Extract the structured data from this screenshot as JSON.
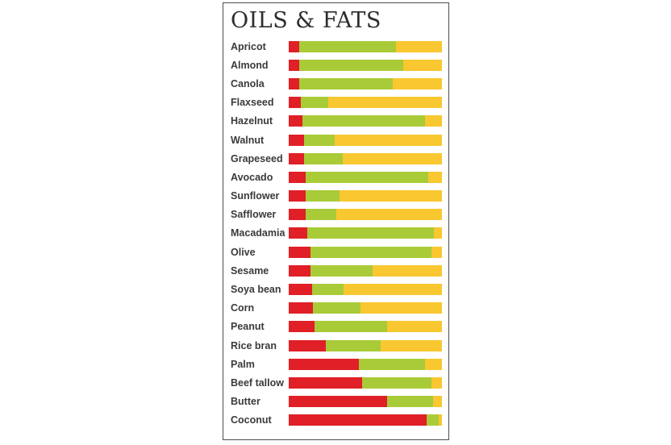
{
  "title": "OILS & FATS",
  "colors": {
    "red": "#e01f27",
    "green": "#a9cb38",
    "yellow": "#f9c72f",
    "panel_border": "#4d4d4d",
    "title_text": "#2d2d2d",
    "label_text": "#3a3a3a"
  },
  "chart_data": {
    "type": "bar",
    "subtype": "horizontal-stacked-100-percent",
    "title": "OILS & FATS",
    "xlabel": "",
    "ylabel": "",
    "xlim": [
      0,
      100
    ],
    "grid": false,
    "legend": "none",
    "categories": [
      "Apricot",
      "Almond",
      "Canola",
      "Flaxseed",
      "Hazelnut",
      "Walnut",
      "Grapeseed",
      "Avocado",
      "Sunflower",
      "Safflower",
      "Macadamia",
      "Olive",
      "Sesame",
      "Soya bean",
      "Corn",
      "Peanut",
      "Rice bran",
      "Palm",
      "Beef tallow",
      "Butter",
      "Coconut"
    ],
    "series": [
      {
        "name": "Red",
        "color": "#e01f27",
        "values": [
          7,
          7,
          7,
          8,
          9,
          10,
          10,
          11,
          11,
          11,
          12,
          14,
          14,
          15,
          16,
          17,
          24,
          46,
          48,
          64,
          90
        ]
      },
      {
        "name": "Green",
        "color": "#a9cb38",
        "values": [
          63,
          68,
          61,
          18,
          80,
          20,
          25,
          80,
          22,
          20,
          83,
          79,
          41,
          21,
          31,
          47,
          36,
          43,
          45,
          30,
          8
        ]
      },
      {
        "name": "Yellow",
        "color": "#f9c72f",
        "values": [
          30,
          25,
          32,
          74,
          11,
          70,
          65,
          9,
          67,
          69,
          5,
          7,
          45,
          64,
          53,
          36,
          40,
          11,
          7,
          6,
          2
        ]
      }
    ]
  }
}
